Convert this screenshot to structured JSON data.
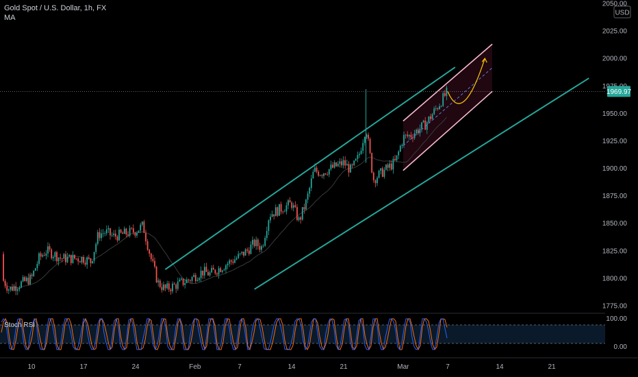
{
  "header": {
    "symbol_line": "Gold Spot / U.S. Dollar, 1h, FX",
    "indicator": "MA",
    "currency_badge": "USD"
  },
  "price_badge": {
    "value": "1969.97",
    "color": "#26a69a"
  },
  "colors": {
    "background": "#000000",
    "up_candle": "#26a69a",
    "down_candle": "#ef5350",
    "channel": "#26a69a",
    "flag_lines": "#f8bbd0",
    "projection": "#f0c000",
    "ma_line": "#3a3a3a",
    "stoch_k": "#2962ff",
    "stoch_d": "#ff6d00"
  },
  "chart_data": {
    "type": "line",
    "title": "Gold Spot / U.S. Dollar, 1h, FX",
    "y_axis": {
      "ticks": [
        "2050.00",
        "2025.00",
        "2000.00",
        "1975.00",
        "1950.00",
        "1925.00",
        "1900.00",
        "1875.00",
        "1850.00",
        "1825.00",
        "1800.00",
        "1775.00"
      ],
      "ylim": [
        1770,
        2050
      ],
      "last_price": 1969.97
    },
    "x_axis": {
      "ticks": [
        "10",
        "17",
        "24",
        "Feb",
        "7",
        "14",
        "21",
        "Mar",
        "7",
        "14",
        "21"
      ]
    },
    "series": [
      {
        "name": "Gold Spot / U.S. Dollar",
        "points": [
          [
            "Jan 4",
            1822
          ],
          [
            "Jan 5",
            1810
          ],
          [
            "Jan 6",
            1800
          ],
          [
            "Jan 7",
            1790
          ],
          [
            "Jan 10",
            1800
          ],
          [
            "Jan 11",
            1818
          ],
          [
            "Jan 12",
            1825
          ],
          [
            "Jan 13",
            1822
          ],
          [
            "Jan 14",
            1818
          ],
          [
            "Jan 17",
            1818
          ],
          [
            "Jan 18",
            1815
          ],
          [
            "Jan 19",
            1840
          ],
          [
            "Jan 20",
            1842
          ],
          [
            "Jan 21",
            1838
          ],
          [
            "Jan 24",
            1843
          ],
          [
            "Jan 25",
            1848
          ],
          [
            "Jan 26",
            1820
          ],
          [
            "Jan 27",
            1796
          ],
          [
            "Jan 28",
            1790
          ],
          [
            "Jan 31",
            1798
          ],
          [
            "Feb 1",
            1802
          ],
          [
            "Feb 2",
            1806
          ],
          [
            "Feb 3",
            1804
          ],
          [
            "Feb 4",
            1808
          ],
          [
            "Feb 7",
            1820
          ],
          [
            "Feb 8",
            1825
          ],
          [
            "Feb 9",
            1832
          ],
          [
            "Feb 10",
            1828
          ],
          [
            "Feb 11",
            1858
          ],
          [
            "Feb 14",
            1868
          ],
          [
            "Feb 15",
            1852
          ],
          [
            "Feb 16",
            1870
          ],
          [
            "Feb 17",
            1898
          ],
          [
            "Feb 18",
            1896
          ],
          [
            "Feb 21",
            1905
          ],
          [
            "Feb 22",
            1898
          ],
          [
            "Feb 23",
            1910
          ],
          [
            "Feb 24",
            1938
          ],
          [
            "Feb 25",
            1890
          ],
          [
            "Feb 28",
            1906
          ],
          [
            "Mar 1",
            1928
          ],
          [
            "Mar 2",
            1930
          ],
          [
            "Mar 3",
            1935
          ],
          [
            "Mar 4",
            1940
          ],
          [
            "Mar 7",
            1969.97
          ]
        ]
      },
      {
        "name": "MA",
        "points": []
      },
      {
        "name": "Stoch RSI",
        "ticks": [
          "100.00",
          "0.00"
        ],
        "overbought": 80,
        "oversold": 20
      }
    ],
    "annotations": [
      {
        "type": "channel",
        "color": "#26a69a",
        "lower": [
          [
            "Feb 9",
            1790
          ],
          [
            "Mar 26",
            1982
          ]
        ],
        "upper": [
          [
            "Jan 28",
            1808
          ],
          [
            "Mar 8",
            1992
          ]
        ]
      },
      {
        "type": "flag",
        "color": "#f8bbd0",
        "upper": [
          [
            "Mar 1",
            1943
          ],
          [
            "Mar 13",
            2013
          ]
        ],
        "lower": [
          [
            "Mar 1",
            1898
          ],
          [
            "Mar 13",
            1970
          ]
        ]
      },
      {
        "type": "projection",
        "color": "#f0c000",
        "points": [
          [
            "Mar 7",
            1970
          ],
          [
            "Mar 9",
            1955
          ],
          [
            "Mar 12",
            2000
          ]
        ]
      }
    ],
    "legend": "top-left",
    "grid": false
  }
}
